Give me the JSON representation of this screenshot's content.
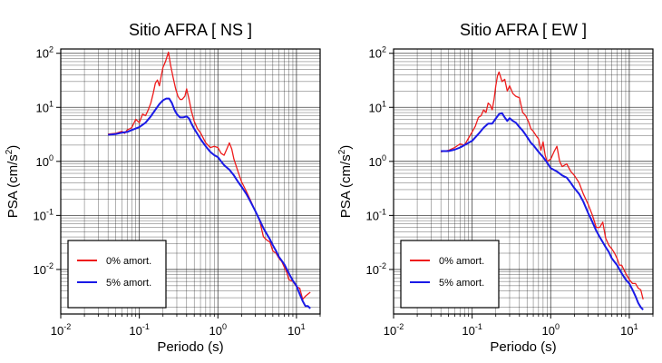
{
  "colors": {
    "undamped": "#ee1c1c",
    "damped": "#1a1ae6",
    "grid": "#222222",
    "frame": "#000000"
  },
  "chart_data": [
    {
      "type": "line",
      "title": "Sitio AFRA [ NS ]",
      "xlabel": "Periodo (s)",
      "ylabel": "PSA (cm/s²)",
      "ylabel_base": "PSA (cm/s",
      "ylabel_exp": "2",
      "ylabel_close": ")",
      "xscale": "log",
      "yscale": "log",
      "xlim": [
        0.01,
        20
      ],
      "ylim": [
        0.0015,
        120
      ],
      "grid": true,
      "legend_position": "bottom-left",
      "xticks": [
        {
          "value": 0.01,
          "base": "10",
          "exp": "-2"
        },
        {
          "value": 0.1,
          "base": "10",
          "exp": "-1"
        },
        {
          "value": 1,
          "base": "10",
          "exp": "0"
        },
        {
          "value": 10,
          "base": "10",
          "exp": "1"
        }
      ],
      "yticks": [
        {
          "value": 0.01,
          "base": "10",
          "exp": "-2"
        },
        {
          "value": 0.1,
          "base": "10",
          "exp": "-1"
        },
        {
          "value": 1,
          "base": "10",
          "exp": "0"
        },
        {
          "value": 10,
          "base": "10",
          "exp": "1"
        },
        {
          "value": 100,
          "base": "10",
          "exp": "2"
        }
      ],
      "series": [
        {
          "name": "0% amort.",
          "color": "#ee1c1c",
          "points": [
            [
              0.04,
              3.2
            ],
            [
              0.05,
              3.3
            ],
            [
              0.06,
              3.6
            ],
            [
              0.065,
              3.3
            ],
            [
              0.07,
              3.8
            ],
            [
              0.08,
              4.2
            ],
            [
              0.09,
              6
            ],
            [
              0.1,
              5.2
            ],
            [
              0.11,
              7.5
            ],
            [
              0.12,
              7
            ],
            [
              0.13,
              9
            ],
            [
              0.14,
              12
            ],
            [
              0.15,
              18
            ],
            [
              0.16,
              28
            ],
            [
              0.17,
              32
            ],
            [
              0.18,
              25
            ],
            [
              0.19,
              38
            ],
            [
              0.2,
              55
            ],
            [
              0.215,
              70
            ],
            [
              0.235,
              105
            ],
            [
              0.25,
              60
            ],
            [
              0.27,
              35
            ],
            [
              0.29,
              22
            ],
            [
              0.31,
              16
            ],
            [
              0.33,
              14
            ],
            [
              0.35,
              14
            ],
            [
              0.38,
              16
            ],
            [
              0.4,
              22
            ],
            [
              0.43,
              14
            ],
            [
              0.46,
              8.5
            ],
            [
              0.5,
              5.5
            ],
            [
              0.55,
              4
            ],
            [
              0.6,
              3.4
            ],
            [
              0.7,
              2.2
            ],
            [
              0.8,
              1.8
            ],
            [
              0.9,
              1.9
            ],
            [
              1.0,
              1.8
            ],
            [
              1.1,
              1.4
            ],
            [
              1.2,
              1.3
            ],
            [
              1.3,
              1.7
            ],
            [
              1.4,
              2.2
            ],
            [
              1.5,
              1.7
            ],
            [
              1.6,
              1.1
            ],
            [
              1.8,
              0.65
            ],
            [
              2.0,
              0.42
            ],
            [
              2.3,
              0.28
            ],
            [
              2.6,
              0.19
            ],
            [
              3.0,
              0.12
            ],
            [
              3.4,
              0.08
            ],
            [
              3.8,
              0.04
            ],
            [
              4.2,
              0.035
            ],
            [
              4.6,
              0.032
            ],
            [
              5.0,
              0.022
            ],
            [
              5.5,
              0.02
            ],
            [
              6,
              0.016
            ],
            [
              6.5,
              0.014
            ],
            [
              7,
              0.011
            ],
            [
              7.5,
              0.009
            ],
            [
              8,
              0.0065
            ],
            [
              9,
              0.006
            ],
            [
              10,
              0.0048
            ],
            [
              11,
              0.0045
            ],
            [
              12,
              0.0028
            ],
            [
              13,
              0.0032
            ],
            [
              15,
              0.0038
            ]
          ]
        },
        {
          "name": "5% amort.",
          "color": "#1a1ae6",
          "points": [
            [
              0.04,
              3.1
            ],
            [
              0.05,
              3.2
            ],
            [
              0.06,
              3.4
            ],
            [
              0.07,
              3.5
            ],
            [
              0.08,
              3.8
            ],
            [
              0.1,
              4.3
            ],
            [
              0.12,
              5.2
            ],
            [
              0.14,
              6.8
            ],
            [
              0.16,
              9
            ],
            [
              0.18,
              11.5
            ],
            [
              0.2,
              13.5
            ],
            [
              0.22,
              14.5
            ],
            [
              0.24,
              14.5
            ],
            [
              0.26,
              12
            ],
            [
              0.28,
              9
            ],
            [
              0.3,
              7.5
            ],
            [
              0.33,
              6.5
            ],
            [
              0.36,
              6.5
            ],
            [
              0.4,
              6.8
            ],
            [
              0.43,
              6.2
            ],
            [
              0.46,
              5
            ],
            [
              0.5,
              4
            ],
            [
              0.55,
              3.2
            ],
            [
              0.6,
              2.6
            ],
            [
              0.7,
              1.9
            ],
            [
              0.8,
              1.5
            ],
            [
              0.9,
              1.3
            ],
            [
              1.0,
              1.2
            ],
            [
              1.1,
              1.0
            ],
            [
              1.2,
              0.85
            ],
            [
              1.4,
              0.7
            ],
            [
              1.6,
              0.55
            ],
            [
              1.8,
              0.42
            ],
            [
              2.0,
              0.34
            ],
            [
              2.3,
              0.25
            ],
            [
              2.6,
              0.18
            ],
            [
              3.0,
              0.12
            ],
            [
              3.4,
              0.082
            ],
            [
              3.8,
              0.058
            ],
            [
              4.2,
              0.045
            ],
            [
              4.6,
              0.036
            ],
            [
              5.0,
              0.028
            ],
            [
              5.5,
              0.022
            ],
            [
              6,
              0.017
            ],
            [
              7,
              0.0125
            ],
            [
              8,
              0.0085
            ],
            [
              9,
              0.0062
            ],
            [
              10,
              0.005
            ],
            [
              11,
              0.0035
            ],
            [
              12,
              0.0026
            ],
            [
              13,
              0.0021
            ],
            [
              14,
              0.0021
            ],
            [
              15,
              0.0019
            ]
          ]
        }
      ]
    },
    {
      "type": "line",
      "title": "Sitio AFRA [ EW ]",
      "xlabel": "Periodo (s)",
      "ylabel": "PSA (cm/s²)",
      "ylabel_base": "PSA (cm/s",
      "ylabel_exp": "2",
      "ylabel_close": ")",
      "xscale": "log",
      "yscale": "log",
      "xlim": [
        0.01,
        20
      ],
      "ylim": [
        0.0015,
        120
      ],
      "grid": true,
      "legend_position": "bottom-left",
      "xticks": [
        {
          "value": 0.01,
          "base": "10",
          "exp": "-2"
        },
        {
          "value": 0.1,
          "base": "10",
          "exp": "-1"
        },
        {
          "value": 1,
          "base": "10",
          "exp": "0"
        },
        {
          "value": 10,
          "base": "10",
          "exp": "1"
        }
      ],
      "yticks": [
        {
          "value": 0.01,
          "base": "10",
          "exp": "-2"
        },
        {
          "value": 0.1,
          "base": "10",
          "exp": "-1"
        },
        {
          "value": 1,
          "base": "10",
          "exp": "0"
        },
        {
          "value": 10,
          "base": "10",
          "exp": "1"
        },
        {
          "value": 100,
          "base": "10",
          "exp": "2"
        }
      ],
      "series": [
        {
          "name": "0% amort.",
          "color": "#ee1c1c",
          "points": [
            [
              0.04,
              1.5
            ],
            [
              0.05,
              1.6
            ],
            [
              0.06,
              1.8
            ],
            [
              0.07,
              2.1
            ],
            [
              0.08,
              2.0
            ],
            [
              0.09,
              2.7
            ],
            [
              0.1,
              3.5
            ],
            [
              0.11,
              4.5
            ],
            [
              0.12,
              6.5
            ],
            [
              0.13,
              7
            ],
            [
              0.14,
              9
            ],
            [
              0.15,
              8
            ],
            [
              0.16,
              12
            ],
            [
              0.17,
              11
            ],
            [
              0.18,
              9
            ],
            [
              0.19,
              14
            ],
            [
              0.2,
              25
            ],
            [
              0.21,
              38
            ],
            [
              0.22,
              45
            ],
            [
              0.24,
              30
            ],
            [
              0.26,
              33
            ],
            [
              0.28,
              20
            ],
            [
              0.3,
              25
            ],
            [
              0.33,
              18
            ],
            [
              0.36,
              16
            ],
            [
              0.4,
              15
            ],
            [
              0.44,
              8
            ],
            [
              0.48,
              7
            ],
            [
              0.52,
              5.5
            ],
            [
              0.56,
              4
            ],
            [
              0.6,
              3.6
            ],
            [
              0.65,
              3
            ],
            [
              0.7,
              2.6
            ],
            [
              0.75,
              1.6
            ],
            [
              0.8,
              2.3
            ],
            [
              0.85,
              1.3
            ],
            [
              0.9,
              1.0
            ],
            [
              1.0,
              1.1
            ],
            [
              1.1,
              1.5
            ],
            [
              1.2,
              1.9
            ],
            [
              1.3,
              1.0
            ],
            [
              1.4,
              0.8
            ],
            [
              1.6,
              0.9
            ],
            [
              1.8,
              0.65
            ],
            [
              2.0,
              0.55
            ],
            [
              2.3,
              0.4
            ],
            [
              2.6,
              0.25
            ],
            [
              3.0,
              0.16
            ],
            [
              3.4,
              0.1
            ],
            [
              3.8,
              0.06
            ],
            [
              4.2,
              0.06
            ],
            [
              4.6,
              0.075
            ],
            [
              5.0,
              0.038
            ],
            [
              5.5,
              0.028
            ],
            [
              6,
              0.024
            ],
            [
              6.5,
              0.02
            ],
            [
              7,
              0.016
            ],
            [
              7.5,
              0.012
            ],
            [
              8,
              0.012
            ],
            [
              9,
              0.0085
            ],
            [
              10,
              0.0065
            ],
            [
              11,
              0.0055
            ],
            [
              12,
              0.0055
            ],
            [
              13,
              0.0045
            ],
            [
              14,
              0.0042
            ],
            [
              15,
              0.0028
            ]
          ]
        },
        {
          "name": "5% amort.",
          "color": "#1a1ae6",
          "points": [
            [
              0.04,
              1.55
            ],
            [
              0.05,
              1.55
            ],
            [
              0.06,
              1.65
            ],
            [
              0.07,
              1.8
            ],
            [
              0.08,
              2.0
            ],
            [
              0.1,
              2.4
            ],
            [
              0.12,
              3.2
            ],
            [
              0.14,
              4.2
            ],
            [
              0.16,
              5
            ],
            [
              0.18,
              5
            ],
            [
              0.2,
              6.2
            ],
            [
              0.22,
              7.5
            ],
            [
              0.24,
              7.8
            ],
            [
              0.26,
              6.5
            ],
            [
              0.28,
              5.6
            ],
            [
              0.3,
              6.3
            ],
            [
              0.33,
              5.6
            ],
            [
              0.36,
              5.2
            ],
            [
              0.4,
              4.3
            ],
            [
              0.44,
              3.7
            ],
            [
              0.48,
              3.1
            ],
            [
              0.52,
              2.6
            ],
            [
              0.56,
              2.2
            ],
            [
              0.6,
              2.0
            ],
            [
              0.7,
              1.5
            ],
            [
              0.8,
              1.2
            ],
            [
              0.9,
              0.95
            ],
            [
              1.0,
              0.75
            ],
            [
              1.2,
              0.65
            ],
            [
              1.4,
              0.55
            ],
            [
              1.6,
              0.5
            ],
            [
              1.8,
              0.4
            ],
            [
              2.0,
              0.32
            ],
            [
              2.3,
              0.25
            ],
            [
              2.6,
              0.18
            ],
            [
              3.0,
              0.11
            ],
            [
              3.4,
              0.075
            ],
            [
              3.8,
              0.052
            ],
            [
              4.2,
              0.04
            ],
            [
              4.6,
              0.032
            ],
            [
              5.0,
              0.026
            ],
            [
              5.5,
              0.021
            ],
            [
              6,
              0.016
            ],
            [
              7,
              0.012
            ],
            [
              8,
              0.0085
            ],
            [
              9,
              0.0065
            ],
            [
              10,
              0.0055
            ],
            [
              11,
              0.0042
            ],
            [
              12,
              0.0032
            ],
            [
              13,
              0.0024
            ],
            [
              14,
              0.002
            ],
            [
              15,
              0.0018
            ]
          ]
        }
      ]
    }
  ]
}
